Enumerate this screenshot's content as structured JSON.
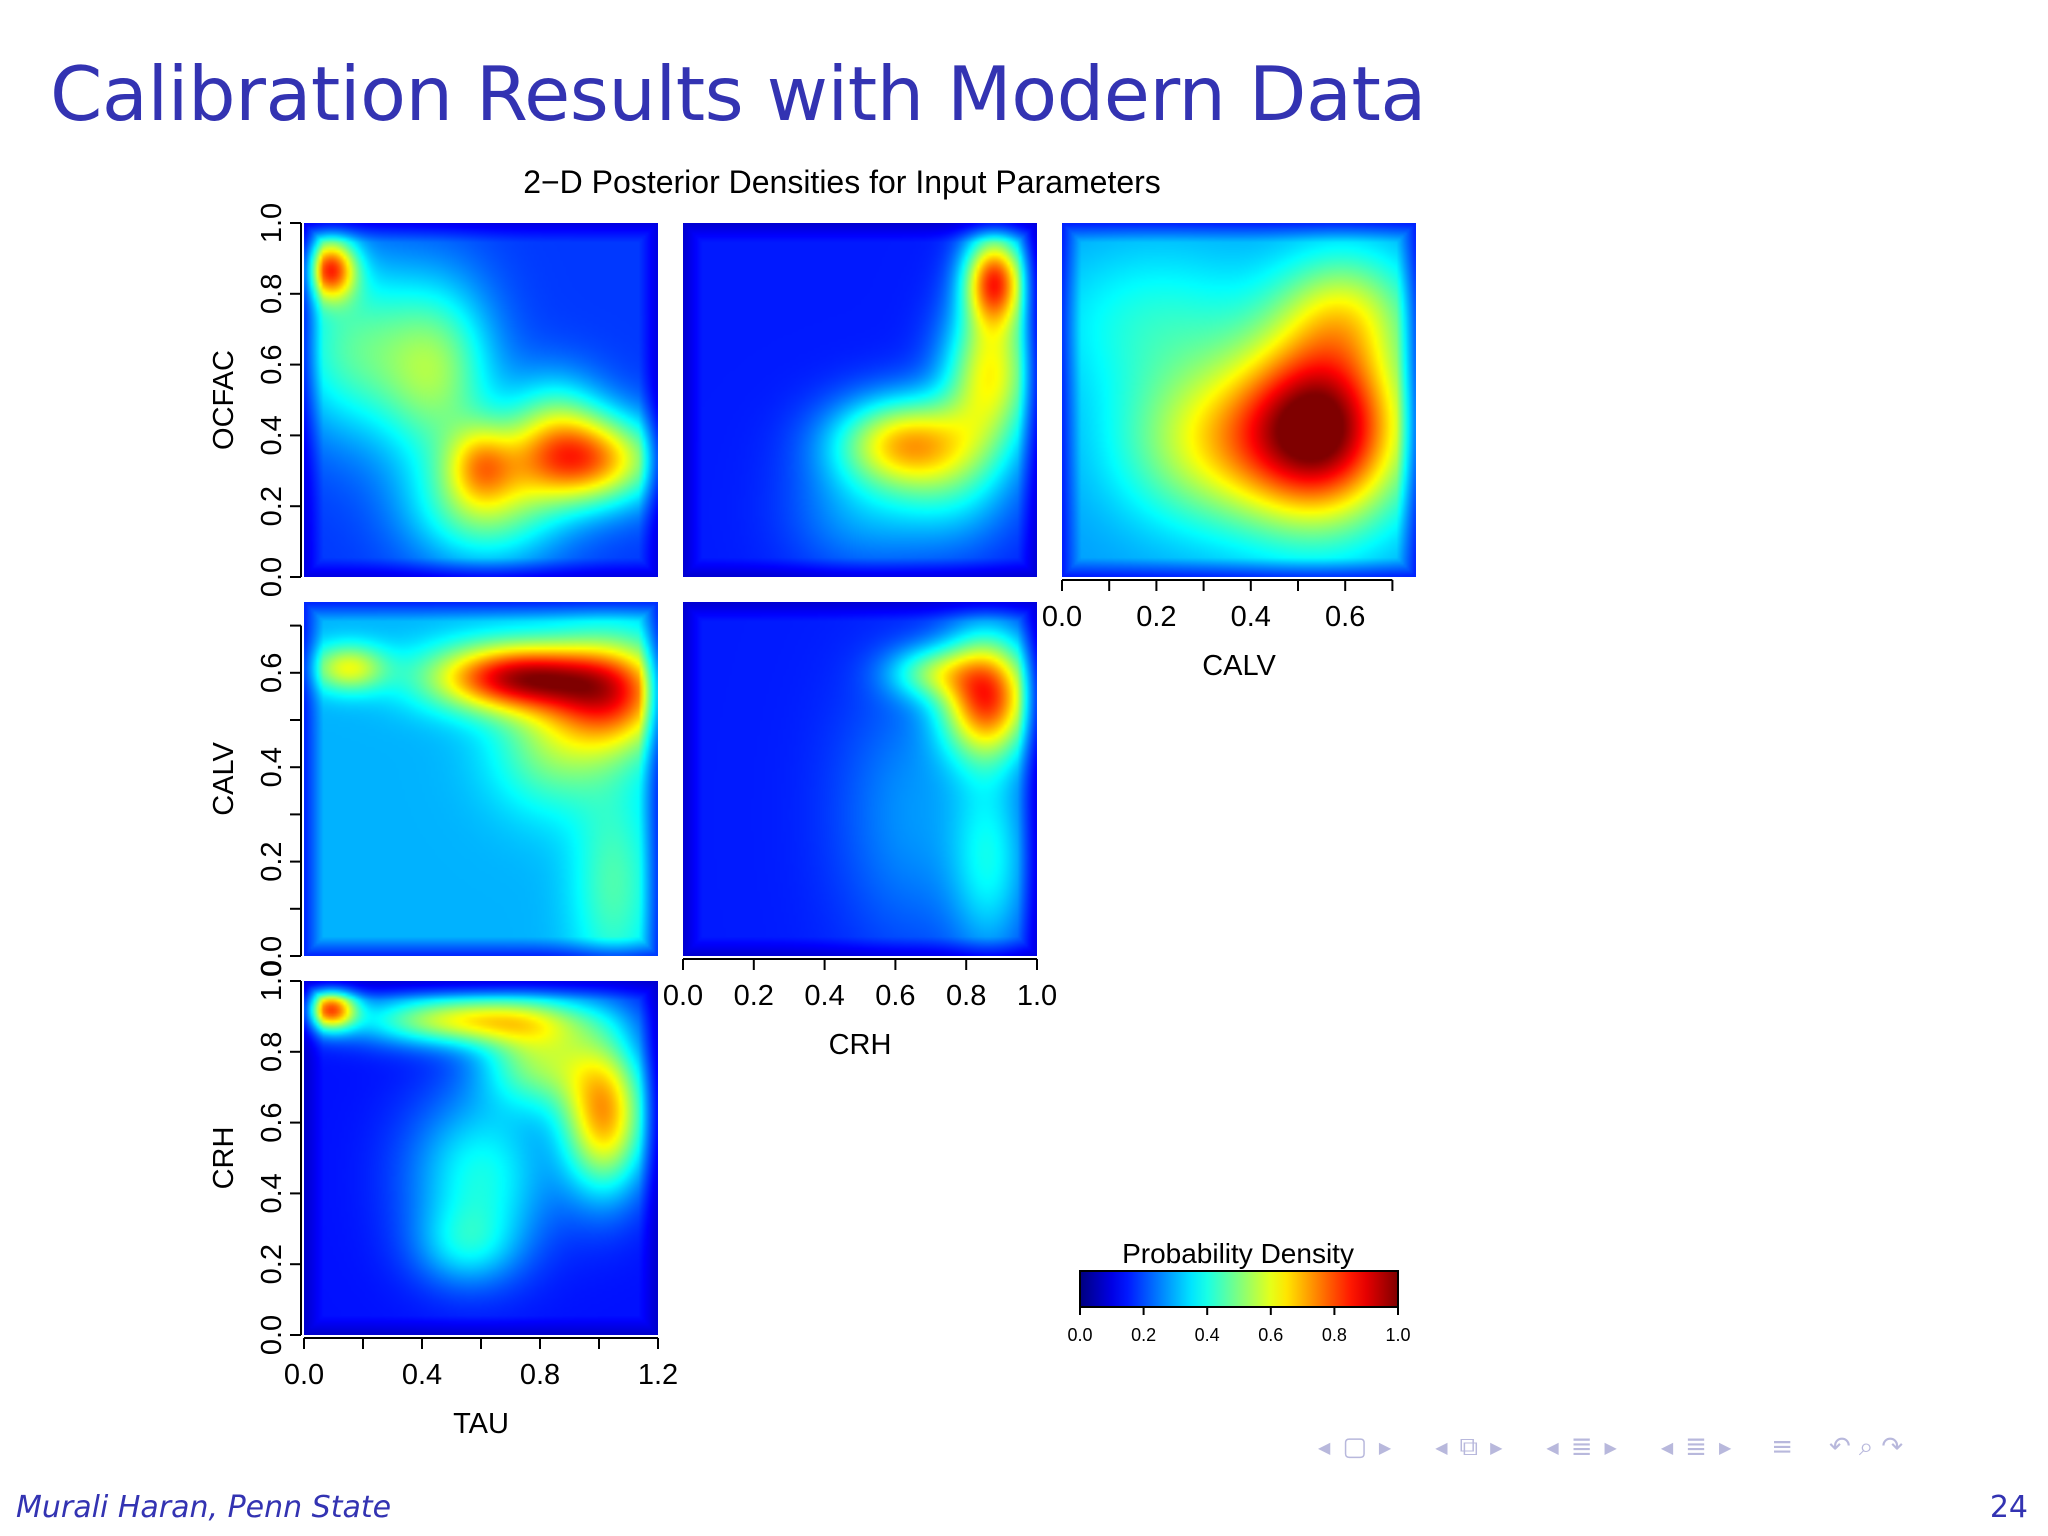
{
  "slide": {
    "title": "Calibration Results with Modern Data",
    "author": "Murali Haran, Penn State",
    "page_number": "24"
  },
  "navigation": {
    "icons": [
      "nav-prev-frame",
      "nav-frame",
      "nav-next-frame",
      "nav-prev-subsection",
      "nav-subsection",
      "nav-next-subsection",
      "nav-prev-section",
      "nav-section",
      "nav-next-section",
      "nav-prev-doc",
      "nav-doc",
      "nav-next-doc",
      "nav-appendix",
      "nav-back",
      "nav-zoom",
      "nav-forward"
    ],
    "color": "#b8b8dc"
  },
  "chart_data": {
    "type": "heatmap",
    "title": "2−D Posterior Densities for Input Parameters",
    "colormap": "jet",
    "colormap_stops": [
      "#00007f",
      "#0000ff",
      "#007fff",
      "#00ffff",
      "#7fff7f",
      "#ffff00",
      "#ff7f00",
      "#ff0000",
      "#7f0000"
    ],
    "legend": {
      "title": "Probability Density",
      "ticks": [
        "0.0",
        "0.2",
        "0.4",
        "0.6",
        "0.8",
        "1.0"
      ],
      "range": [
        0,
        1
      ]
    },
    "variables": {
      "TAU": {
        "label": "TAU",
        "range": [
          0.0,
          1.2
        ],
        "ticks": [
          "0.0",
          "0.4",
          "0.8",
          "1.2"
        ],
        "minor_ticks": [
          0.2,
          0.6,
          1.0
        ]
      },
      "CRH": {
        "label": "CRH",
        "range": [
          0.0,
          1.0
        ],
        "ticks": [
          "0.0",
          "0.2",
          "0.4",
          "0.6",
          "0.8",
          "1.0"
        ]
      },
      "CALV": {
        "label": "CALV",
        "range": [
          0.0,
          0.75
        ],
        "ticks": [
          "0.0",
          "0.2",
          "0.4",
          "0.6"
        ],
        "minor_ticks": [
          0.1,
          0.3,
          0.5,
          0.7
        ]
      },
      "OCFAC": {
        "label": "OCFAC",
        "range": [
          0.0,
          1.0
        ],
        "ticks": [
          "0.0",
          "0.2",
          "0.4",
          "0.6",
          "0.8",
          "1.0"
        ]
      }
    },
    "panels": [
      {
        "id": "tau-ocfac",
        "x": "TAU",
        "y": "OCFAC",
        "background": 0.18,
        "modes": [
          [
            0.09,
            0.87,
            0.06,
            0.06,
            0.55
          ],
          [
            0.95,
            0.33,
            0.18,
            0.09,
            0.55
          ],
          [
            0.62,
            0.2,
            0.18,
            0.12,
            0.3
          ],
          [
            0.85,
            0.45,
            0.12,
            0.1,
            0.2
          ],
          [
            0.45,
            0.58,
            0.14,
            0.18,
            0.32
          ],
          [
            0.15,
            0.65,
            0.16,
            0.18,
            0.25
          ],
          [
            0.6,
            0.32,
            0.08,
            0.08,
            0.25
          ]
        ]
      },
      {
        "id": "crh-ocfac",
        "x": "CRH",
        "y": "OCFAC",
        "background": 0.15,
        "modes": [
          [
            0.88,
            0.84,
            0.06,
            0.09,
            0.62
          ],
          [
            0.87,
            0.58,
            0.09,
            0.14,
            0.45
          ],
          [
            0.62,
            0.38,
            0.14,
            0.09,
            0.45
          ],
          [
            0.76,
            0.28,
            0.13,
            0.14,
            0.2
          ],
          [
            0.5,
            0.18,
            0.14,
            0.12,
            0.12
          ]
        ]
      },
      {
        "id": "calv-ocfac",
        "x": "CALV",
        "y": "OCFAC",
        "background": 0.28,
        "modes": [
          [
            0.55,
            0.42,
            0.12,
            0.18,
            0.72
          ],
          [
            0.32,
            0.38,
            0.14,
            0.16,
            0.3
          ],
          [
            0.6,
            0.75,
            0.1,
            0.12,
            0.25
          ],
          [
            0.2,
            0.72,
            0.16,
            0.15,
            0.12
          ]
        ]
      },
      {
        "id": "tau-calv",
        "x": "TAU",
        "y": "CALV",
        "background": 0.3,
        "modes": [
          [
            0.72,
            0.59,
            0.2,
            0.05,
            0.6
          ],
          [
            1.05,
            0.55,
            0.14,
            0.08,
            0.45
          ],
          [
            0.15,
            0.61,
            0.09,
            0.035,
            0.3
          ],
          [
            0.85,
            0.45,
            0.15,
            0.1,
            0.2
          ],
          [
            1.05,
            0.15,
            0.1,
            0.15,
            0.15
          ]
        ]
      },
      {
        "id": "crh-calv",
        "x": "CRH",
        "y": "CALV",
        "background": 0.15,
        "modes": [
          [
            0.86,
            0.55,
            0.09,
            0.09,
            0.65
          ],
          [
            0.7,
            0.6,
            0.09,
            0.04,
            0.25
          ],
          [
            0.87,
            0.2,
            0.08,
            0.15,
            0.2
          ],
          [
            0.65,
            0.3,
            0.15,
            0.2,
            0.12
          ]
        ]
      },
      {
        "id": "tau-crh",
        "x": "TAU",
        "y": "CRH",
        "background": 0.14,
        "modes": [
          [
            0.09,
            0.92,
            0.06,
            0.04,
            0.6
          ],
          [
            0.55,
            0.89,
            0.25,
            0.05,
            0.45
          ],
          [
            1.02,
            0.62,
            0.1,
            0.15,
            0.55
          ],
          [
            0.8,
            0.78,
            0.14,
            0.1,
            0.35
          ],
          [
            0.6,
            0.45,
            0.17,
            0.16,
            0.25
          ],
          [
            0.55,
            0.25,
            0.12,
            0.08,
            0.15
          ]
        ]
      }
    ]
  }
}
